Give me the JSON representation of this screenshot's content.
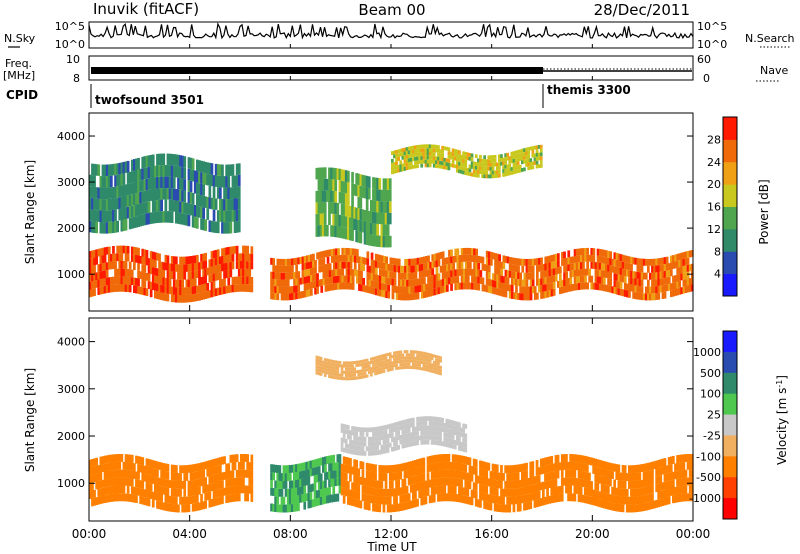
{
  "header": {
    "station": "Inuvik (fitACF)",
    "beam": "Beam 00",
    "date": "28/Dec/2011"
  },
  "top_panels": {
    "nsky_label": "N.Sky",
    "nsky_ticks": [
      "10^5",
      "10^0"
    ],
    "nsearch_label": "N.Search",
    "nsearch_ticks": [
      "10^5",
      "10^0"
    ],
    "freq_label_1": "Freq.",
    "freq_label_2": "[MHz]",
    "freq_ticks": [
      "10",
      "8"
    ],
    "nave_label": "Nave",
    "nave_ticks": [
      "60",
      "0"
    ],
    "cpid_label": "CPID",
    "cpid_segments": [
      {
        "name": "twofsound 3501",
        "start_hour": 0,
        "end_hour": 18
      },
      {
        "name": "themis 3300",
        "start_hour": 18,
        "end_hour": 24
      }
    ]
  },
  "x_axis": {
    "label": "Time UT",
    "tick_labels": [
      "00:00",
      "04:00",
      "08:00",
      "12:00",
      "16:00",
      "20:00",
      "00:00"
    ],
    "tick_hours": [
      0,
      4,
      8,
      12,
      16,
      20,
      24
    ]
  },
  "colors": {
    "power": [
      "#1a1aff",
      "#2a4bb0",
      "#2f8a6a",
      "#4fa64f",
      "#c8c81e",
      "#f0a014",
      "#f06a0a",
      "#ff1a00"
    ],
    "velocity": [
      "#ff0000",
      "#ff4000",
      "#ff8000",
      "#f0b060",
      "#c8c8c8",
      "#4ec84e",
      "#2e8a6a",
      "#2a4bb0",
      "#1a1aff"
    ]
  },
  "chart_data": [
    {
      "type": "heatmap",
      "ylabel": "Slant Range [km]",
      "ylim": [
        200,
        4500
      ],
      "xlim": [
        0,
        24
      ],
      "y_ticks": [
        1000,
        2000,
        3000,
        4000
      ],
      "colorbar_label": "Power [dB]",
      "colorbar_range": [
        0,
        32
      ],
      "colorbar_ticks": [
        4,
        8,
        12,
        16,
        20,
        24,
        28
      ],
      "regions": [
        {
          "hours": [
            0,
            6.5
          ],
          "range_km": [
            500,
            1500
          ],
          "value": 27
        },
        {
          "hours": [
            7.2,
            24
          ],
          "range_km": [
            550,
            1450
          ],
          "value": 26
        },
        {
          "hours": [
            9,
            12
          ],
          "range_km": [
            1700,
            3200
          ],
          "value": 14
        },
        {
          "hours": [
            12,
            18
          ],
          "range_km": [
            3200,
            3700
          ],
          "value": 18
        },
        {
          "hours": [
            0,
            6
          ],
          "range_km": [
            2000,
            3500
          ],
          "value": 10
        }
      ]
    },
    {
      "type": "heatmap",
      "ylabel": "Slant Range [km]",
      "ylim": [
        200,
        4500
      ],
      "xlim": [
        0,
        24
      ],
      "y_ticks": [
        1000,
        2000,
        3000,
        4000
      ],
      "colorbar_label": "Velocity [m s^-1]",
      "colorbar_ticks": [
        "1000",
        "500",
        "100",
        "25",
        "-25",
        "-100",
        "-500",
        "-1000"
      ],
      "regions": [
        {
          "hours": [
            0,
            6.5
          ],
          "range_km": [
            500,
            1500
          ],
          "value": -200
        },
        {
          "hours": [
            7.2,
            10
          ],
          "range_km": [
            500,
            1500
          ],
          "value": 100
        },
        {
          "hours": [
            10,
            24
          ],
          "range_km": [
            500,
            1500
          ],
          "value": -300
        },
        {
          "hours": [
            10,
            15
          ],
          "range_km": [
            1700,
            2300
          ],
          "value": 0
        },
        {
          "hours": [
            9,
            14
          ],
          "range_km": [
            3300,
            3700
          ],
          "value": -60
        }
      ]
    }
  ]
}
